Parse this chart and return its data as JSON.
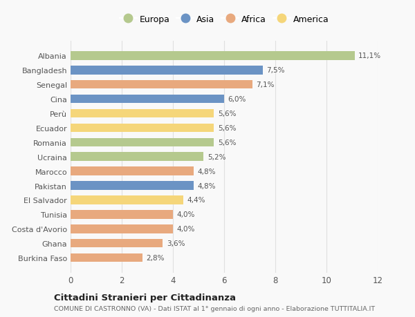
{
  "countries": [
    "Albania",
    "Bangladesh",
    "Senegal",
    "Cina",
    "Perù",
    "Ecuador",
    "Romania",
    "Ucraina",
    "Marocco",
    "Pakistan",
    "El Salvador",
    "Tunisia",
    "Costa d'Avorio",
    "Ghana",
    "Burkina Faso"
  ],
  "values": [
    11.1,
    7.5,
    7.1,
    6.0,
    5.6,
    5.6,
    5.6,
    5.2,
    4.8,
    4.8,
    4.4,
    4.0,
    4.0,
    3.6,
    2.8
  ],
  "labels": [
    "11,1%",
    "7,5%",
    "7,1%",
    "6,0%",
    "5,6%",
    "5,6%",
    "5,6%",
    "5,2%",
    "4,8%",
    "4,8%",
    "4,4%",
    "4,0%",
    "4,0%",
    "3,6%",
    "2,8%"
  ],
  "continents": [
    "Europa",
    "Asia",
    "Africa",
    "Asia",
    "America",
    "America",
    "Europa",
    "Europa",
    "Africa",
    "Asia",
    "America",
    "Africa",
    "Africa",
    "Africa",
    "Africa"
  ],
  "colors": {
    "Europa": "#b5c98e",
    "Asia": "#6b93c4",
    "Africa": "#e8a97e",
    "America": "#f5d67a"
  },
  "legend_order": [
    "Europa",
    "Asia",
    "Africa",
    "America"
  ],
  "title": "Cittadini Stranieri per Cittadinanza",
  "subtitle": "COMUNE DI CASTRONNO (VA) - Dati ISTAT al 1° gennaio di ogni anno - Elaborazione TUTTITALIA.IT",
  "xlim": [
    0,
    12
  ],
  "xticks": [
    0,
    2,
    4,
    6,
    8,
    10,
    12
  ],
  "background_color": "#f9f9f9",
  "grid_color": "#e0e0e0",
  "bar_height": 0.6
}
